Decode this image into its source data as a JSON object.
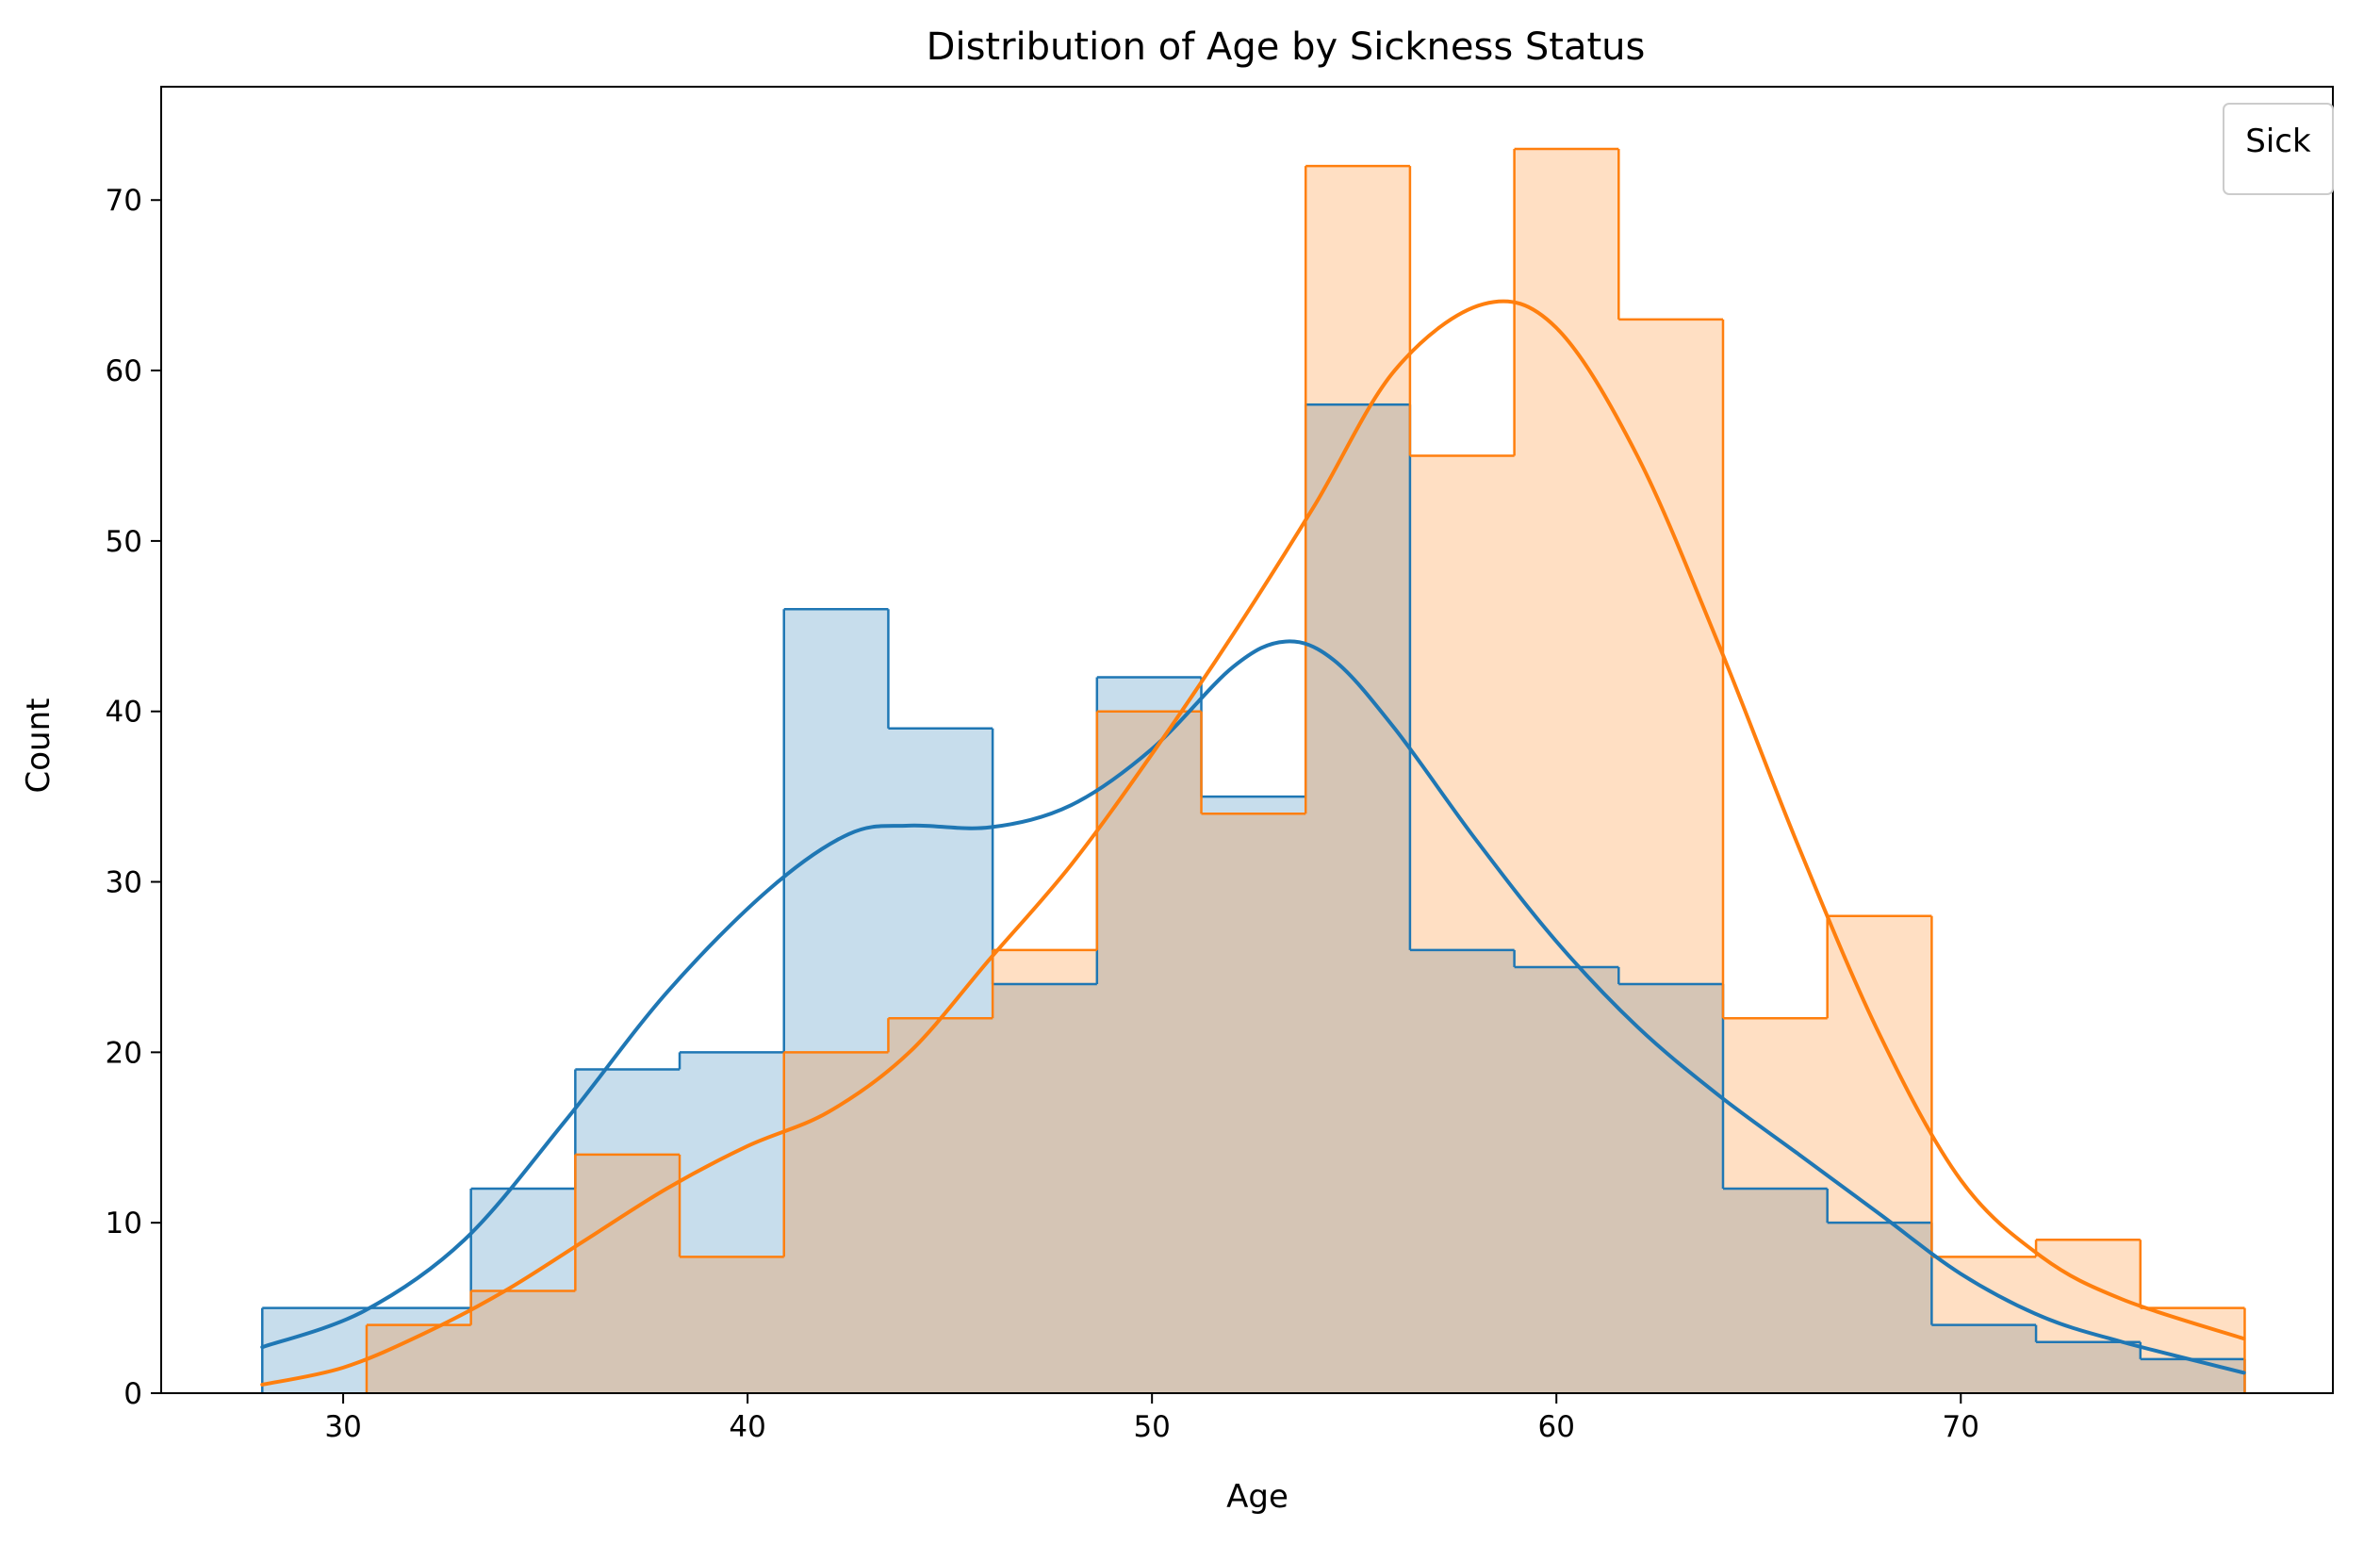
{
  "chart_data": {
    "type": "histogram",
    "title": "Distribution of Age by Sickness Status",
    "xlabel": "Age",
    "ylabel": "Count",
    "xlim": [
      25.5,
      79.2
    ],
    "ylim": [
      0,
      76.65
    ],
    "xticks": [
      30,
      40,
      50,
      60,
      70
    ],
    "yticks": [
      0,
      10,
      20,
      30,
      40,
      50,
      60,
      70
    ],
    "grid": false,
    "legend": {
      "title": "Sick",
      "placement": "top-right",
      "entries": []
    },
    "bin_edges": [
      28.0,
      30.58,
      33.16,
      35.74,
      38.32,
      40.9,
      43.48,
      46.06,
      48.64,
      51.22,
      53.8,
      56.38,
      58.96,
      61.54,
      64.12,
      66.7,
      69.28,
      71.86,
      74.44,
      77.02
    ],
    "series": [
      {
        "color": "#1f77b4",
        "counts": [
          5,
          5,
          12,
          19,
          20,
          46,
          39,
          24,
          42,
          35,
          58,
          26,
          25,
          24,
          12,
          10,
          4,
          3,
          2
        ],
        "kde": [
          [
            28.0,
            2.7
          ],
          [
            30.5,
            4.8
          ],
          [
            33,
            9.0
          ],
          [
            35.5,
            16.0
          ],
          [
            38,
            23.5
          ],
          [
            40.5,
            29.5
          ],
          [
            42.5,
            32.8
          ],
          [
            44,
            33.3
          ],
          [
            46,
            33.2
          ],
          [
            48,
            34.5
          ],
          [
            50,
            37.8
          ],
          [
            52,
            42.6
          ],
          [
            53.3,
            44.1
          ],
          [
            54.5,
            43.0
          ],
          [
            56,
            39.0
          ],
          [
            58,
            32.5
          ],
          [
            60,
            26.5
          ],
          [
            62,
            21.5
          ],
          [
            64,
            17.5
          ],
          [
            66,
            14.0
          ],
          [
            68,
            10.5
          ],
          [
            70,
            7.0
          ],
          [
            72,
            4.5
          ],
          [
            74,
            3.0
          ],
          [
            77.0,
            1.2
          ]
        ]
      },
      {
        "color": "#ff7f0e",
        "counts": [
          0,
          4,
          6,
          14,
          8,
          20,
          22,
          26,
          40,
          34,
          72,
          55,
          73,
          63,
          22,
          28,
          8,
          9,
          5
        ],
        "kde": [
          [
            28.0,
            0.5
          ],
          [
            30,
            1.5
          ],
          [
            32,
            3.5
          ],
          [
            34,
            6.0
          ],
          [
            36,
            9.0
          ],
          [
            38,
            12.0
          ],
          [
            40,
            14.5
          ],
          [
            42,
            16.5
          ],
          [
            44,
            20.0
          ],
          [
            46,
            25.5
          ],
          [
            48,
            31.0
          ],
          [
            50,
            37.5
          ],
          [
            52,
            44.5
          ],
          [
            54,
            52.0
          ],
          [
            56,
            60.0
          ],
          [
            58.2,
            63.9
          ],
          [
            60,
            62.5
          ],
          [
            62,
            55.0
          ],
          [
            64,
            44.0
          ],
          [
            66,
            32.0
          ],
          [
            68,
            21.0
          ],
          [
            70,
            12.5
          ],
          [
            72,
            8.0
          ],
          [
            74,
            5.5
          ],
          [
            77.0,
            3.2
          ]
        ]
      }
    ]
  }
}
